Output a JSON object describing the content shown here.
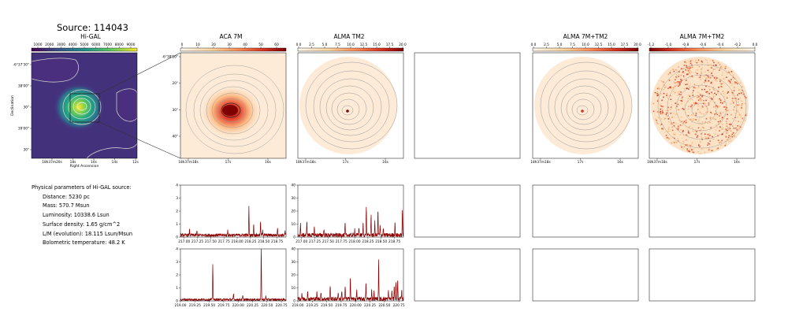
{
  "page": {
    "title": "Source: 114043"
  },
  "panels": {
    "higal": {
      "title": "Hi-GAL",
      "colorbar_ticks": [
        "1000",
        "2000",
        "3000",
        "4000",
        "5000",
        "6000",
        "7000",
        "8000",
        "9000"
      ],
      "y_ticks": [
        "-6°37'30\"",
        "38'00\"",
        "30\"",
        "39'00\"",
        "30\""
      ],
      "x_ticks": [
        "18h37m20s",
        "18s",
        "16s",
        "14s",
        "12s"
      ],
      "xlabel": "Right Ascension",
      "ylabel": "Declination"
    },
    "aca7m": {
      "title": "ACA 7M",
      "colorbar_ticks": [
        "0",
        "10",
        "20",
        "30",
        "40",
        "50",
        "60"
      ],
      "y_ticks": [
        "-6°38'10\"",
        "20\"",
        "30\"",
        "40\""
      ],
      "x_ticks": [
        "18h37m18s",
        "17s",
        "16s"
      ]
    },
    "tm2": {
      "title": "ALMA TM2",
      "colorbar_ticks": [
        "0.0",
        "2.5",
        "5.0",
        "7.5",
        "10.0",
        "12.5",
        "15.0",
        "17.5",
        "20.0"
      ],
      "x_ticks": [
        "18h37m18s",
        "17s",
        "16s"
      ]
    },
    "combo1": {
      "title": "ALMA 7M+TM2",
      "colorbar_ticks": [
        "0.0",
        "2.5",
        "5.0",
        "7.5",
        "10.0",
        "12.5",
        "15.0",
        "17.5",
        "20.0"
      ],
      "x_ticks": [
        "18h37m18s",
        "17s",
        "16s"
      ]
    },
    "combo2": {
      "title": "ALMA 7M+TM2",
      "colorbar_ticks": [
        "-1.2",
        "-1.0",
        "-0.8",
        "-0.6",
        "-0.4",
        "-0.2",
        "0.0"
      ],
      "x_ticks": [
        "18h37m18s",
        "17s",
        "16s"
      ]
    }
  },
  "params": {
    "heading": "Physical parameters of Hi-GAL source:",
    "lines": [
      "Distance: 5230 pc",
      "Mass: 570.7 Msun",
      "Luminosity: 10338.6 Lsun",
      "Surface density: 1.65 g/cm^2",
      "L/M (evolution): 18.115 Lsun/Msun",
      "Bolometric temperature: 48.2 K"
    ]
  },
  "colors": {
    "spectrum": "#8b0000",
    "viridis_bg": "#46337e",
    "contour": "#d9d9d9",
    "orange_bg": "#fdebd7"
  },
  "chart_data": [
    {
      "type": "line",
      "name_id": "spec-aca-1",
      "xlim": [
        216.93,
        218.92
      ],
      "ylim": [
        0,
        4
      ],
      "x_ticks": [
        217.0,
        217.25,
        217.5,
        217.75,
        218.0,
        218.25,
        218.5,
        218.75
      ],
      "x_tick_labels": [
        "217.00",
        "217.25",
        "217.50",
        "217.75",
        "218.00",
        "218.25",
        "218.50",
        "218.75"
      ],
      "y_ticks": [
        0,
        1,
        2,
        3,
        4
      ],
      "y_tick_labels": [
        "0",
        "1",
        "2",
        "3",
        "4"
      ],
      "baseline": 0.15,
      "noise": 0.12,
      "peaks": [
        [
          217.1,
          0.45
        ],
        [
          217.24,
          0.3
        ],
        [
          217.82,
          0.4
        ],
        [
          218.22,
          2.15
        ],
        [
          218.31,
          0.85
        ],
        [
          218.44,
          1.05
        ],
        [
          218.48,
          0.45
        ],
        [
          218.76,
          0.65
        ],
        [
          218.9,
          0.3
        ]
      ]
    },
    {
      "type": "line",
      "name_id": "spec-tm2-1",
      "xlim": [
        216.93,
        218.92
      ],
      "ylim": [
        0,
        40
      ],
      "x_ticks": [
        217.0,
        217.25,
        217.5,
        217.75,
        218.0,
        218.25,
        218.5,
        218.75
      ],
      "x_tick_labels": [
        "217.00",
        "217.25",
        "217.50",
        "217.75",
        "218.00",
        "218.25",
        "218.50",
        "218.75"
      ],
      "y_ticks": [
        0,
        10,
        20,
        30,
        40
      ],
      "y_tick_labels": [
        "0",
        "10",
        "20",
        "30",
        "40"
      ],
      "baseline": 1.5,
      "noise": 1.6,
      "peaks": [
        [
          216.98,
          8
        ],
        [
          217.1,
          12
        ],
        [
          217.24,
          6
        ],
        [
          217.42,
          5
        ],
        [
          217.82,
          9
        ],
        [
          218.0,
          5
        ],
        [
          218.08,
          7
        ],
        [
          218.16,
          9
        ],
        [
          218.22,
          23
        ],
        [
          218.31,
          16
        ],
        [
          218.38,
          10
        ],
        [
          218.44,
          19
        ],
        [
          218.48,
          7
        ],
        [
          218.54,
          6
        ],
        [
          218.76,
          10
        ],
        [
          218.9,
          20
        ]
      ]
    },
    {
      "type": "line",
      "name_id": "spec-aca-2",
      "xlim": [
        219.0,
        220.83
      ],
      "ylim": [
        0,
        4
      ],
      "x_ticks": [
        219.0,
        219.25,
        219.5,
        219.75,
        220.0,
        220.25,
        220.5,
        220.75
      ],
      "x_tick_labels": [
        "219.00",
        "219.25",
        "219.50",
        "219.75",
        "220.00",
        "220.25",
        "220.50",
        "220.75"
      ],
      "y_ticks": [
        0,
        1,
        2,
        3,
        4
      ],
      "y_tick_labels": [
        "0",
        "1",
        "2",
        "3",
        "4"
      ],
      "baseline": 0.1,
      "noise": 0.09,
      "peaks": [
        [
          219.56,
          2.8
        ],
        [
          219.92,
          0.45
        ],
        [
          220.08,
          0.3
        ],
        [
          220.4,
          4.1
        ],
        [
          220.48,
          0.3
        ]
      ]
    },
    {
      "type": "line",
      "name_id": "spec-tm2-2",
      "xlim": [
        219.0,
        220.83
      ],
      "ylim": [
        0,
        40
      ],
      "x_ticks": [
        219.0,
        219.25,
        219.5,
        219.75,
        220.0,
        220.25,
        220.5,
        220.75
      ],
      "x_tick_labels": [
        "219.00",
        "219.25",
        "219.50",
        "219.75",
        "220.00",
        "220.25",
        "220.50",
        "220.75"
      ],
      "y_ticks": [
        0,
        10,
        20,
        30,
        40
      ],
      "y_tick_labels": [
        "0",
        "10",
        "20",
        "30",
        "40"
      ],
      "baseline": 1.5,
      "noise": 1.6,
      "peaks": [
        [
          219.07,
          5
        ],
        [
          219.17,
          5
        ],
        [
          219.33,
          5
        ],
        [
          219.4,
          6
        ],
        [
          219.56,
          11
        ],
        [
          219.7,
          6
        ],
        [
          219.76,
          7
        ],
        [
          219.82,
          9
        ],
        [
          219.91,
          18
        ],
        [
          220.02,
          7
        ],
        [
          220.18,
          12
        ],
        [
          220.28,
          8
        ],
        [
          220.32,
          6
        ],
        [
          220.4,
          30
        ],
        [
          220.57,
          6
        ],
        [
          220.63,
          7
        ],
        [
          220.67,
          11
        ],
        [
          220.7,
          14
        ],
        [
          220.73,
          15
        ],
        [
          220.8,
          6
        ]
      ]
    }
  ]
}
